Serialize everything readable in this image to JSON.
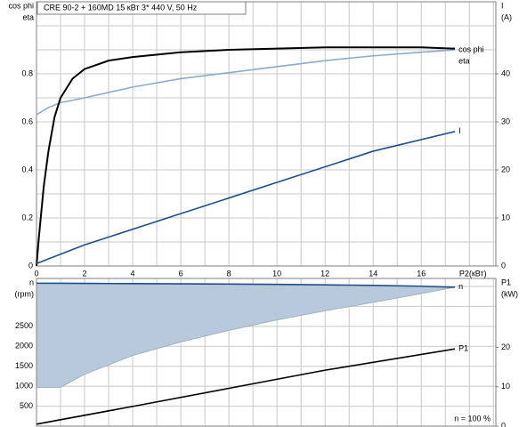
{
  "chart_data": [
    {
      "type": "line",
      "title": "CRE 90-2 + 160MD    15 кВт    3* 440 V, 50 Hz",
      "xlabel": "P2(кВт)",
      "ylabel": [
        "cos phi",
        "eta"
      ],
      "y2label": [
        "I",
        "(A)"
      ],
      "xlim": [
        0,
        19.1
      ],
      "xticks": [
        0,
        2,
        4,
        6,
        8,
        10,
        12,
        14,
        16
      ],
      "xminor": [
        1,
        3,
        5,
        7,
        9,
        11,
        13,
        15,
        17,
        18,
        19
      ],
      "ylim": [
        0,
        1.1
      ],
      "yticks": [
        0,
        0.2,
        0.4,
        0.6,
        0.8
      ],
      "yminor": [
        0.1,
        0.3,
        0.5,
        0.7,
        0.9,
        1.0
      ],
      "y2lim": [
        0,
        55
      ],
      "y2ticks": [
        0,
        10,
        20,
        30,
        40
      ],
      "grid": true,
      "series": [
        {
          "name": "cos phi",
          "color": "#8eaacb",
          "x": [
            0,
            0.5,
            1,
            2,
            4,
            6,
            8,
            10,
            12,
            14,
            16,
            17.4
          ],
          "values": [
            0.63,
            0.66,
            0.68,
            0.7,
            0.745,
            0.78,
            0.805,
            0.83,
            0.855,
            0.875,
            0.89,
            0.9
          ]
        },
        {
          "name": "eta",
          "color": "#000000",
          "x": [
            0,
            0.1,
            0.3,
            0.5,
            0.75,
            1,
            1.5,
            2,
            3,
            4,
            6,
            8,
            10,
            12,
            14,
            16,
            17.4
          ],
          "values": [
            0,
            0.12,
            0.33,
            0.48,
            0.62,
            0.7,
            0.78,
            0.82,
            0.855,
            0.87,
            0.89,
            0.9,
            0.905,
            0.91,
            0.91,
            0.91,
            0.905
          ]
        },
        {
          "name": "I",
          "color": "#1f4e8a",
          "axis": "y2",
          "x": [
            0,
            2,
            6,
            10,
            14,
            17.4
          ],
          "values": [
            0.5,
            4.4,
            10.9,
            17.4,
            23.9,
            28
          ]
        }
      ]
    },
    {
      "type": "line",
      "annotation": "n  = 100 %",
      "ylabel": [
        "n",
        "(rpm)"
      ],
      "y2label": [
        "P1",
        "(kW)"
      ],
      "xlim": [
        0,
        19.1
      ],
      "xminor": [
        1,
        2,
        3,
        4,
        5,
        6,
        7,
        8,
        9,
        10,
        11,
        12,
        13,
        14,
        15,
        16,
        17,
        18,
        19
      ],
      "ylim": [
        0,
        3700
      ],
      "yticks": [
        500,
        1000,
        1500,
        2000,
        2500
      ],
      "yminor": [
        3000,
        3500
      ],
      "y2lim": [
        0,
        37.5
      ],
      "y2ticks": [
        0,
        10,
        20
      ],
      "grid": true,
      "band": {
        "color": "#b7c9da",
        "x": [
          0,
          1,
          2,
          4,
          6,
          8,
          10,
          12,
          14,
          16,
          17.4
        ],
        "lower": [
          970,
          970,
          1300,
          1770,
          2110,
          2400,
          2660,
          2890,
          3100,
          3320,
          3480
        ]
      },
      "series": [
        {
          "name": "n",
          "color": "#1f4e8a",
          "x": [
            0,
            1,
            2,
            4,
            6,
            8,
            10,
            12,
            14,
            16,
            17.4
          ],
          "values": [
            3580,
            3578,
            3575,
            3570,
            3565,
            3560,
            3550,
            3540,
            3525,
            3505,
            3480
          ]
        },
        {
          "name": "P1",
          "color": "#000000",
          "axis": "y2",
          "x": [
            0,
            4,
            8,
            12,
            17.4
          ],
          "values": [
            0.5,
            5,
            9.6,
            14.2,
            19.6
          ]
        }
      ]
    }
  ]
}
